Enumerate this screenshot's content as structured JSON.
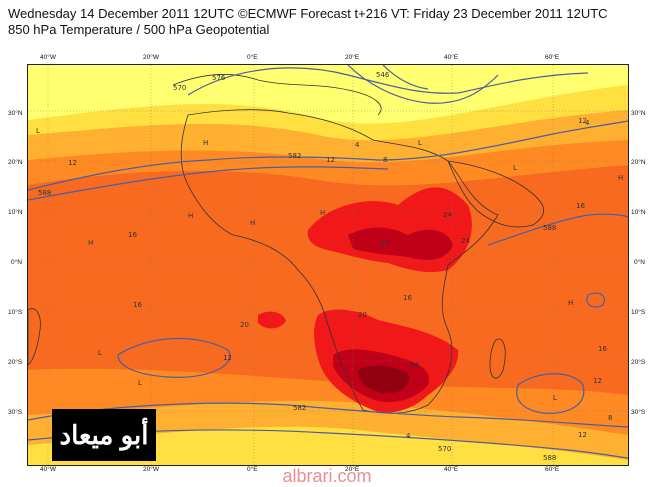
{
  "header": {
    "line1": "Wednesday 14 December 2011 12UTC ©ECMWF Forecast t+216 VT: Friday 23 December 2011 12UTC",
    "line2": "850 hPa Temperature / 500 hPa Geopotential"
  },
  "axes": {
    "top_longitudes": [
      "40°W",
      "20°W",
      "0°E",
      "20°E",
      "40°E",
      "60°E"
    ],
    "bottom_longitudes": [
      "40°W",
      "20°W",
      "0°E",
      "20°E",
      "40°E",
      "60°E"
    ],
    "left_latitudes": [
      "30°N",
      "20°N",
      "10°N",
      "0°N",
      "10°S",
      "20°S",
      "30°S"
    ],
    "right_latitudes": [
      "30°N",
      "20°N",
      "10°N",
      "0°N",
      "10°S",
      "20°S",
      "30°S"
    ]
  },
  "colors": {
    "temp_lt_4": "#ffff70",
    "temp_4_8": "#ffe040",
    "temp_8_12": "#ffb030",
    "temp_12_16": "#ff8a24",
    "temp_16_20": "#f86a20",
    "temp_20_24": "#f01818",
    "temp_24_28": "#c00018",
    "temp_gt_28": "#900010",
    "contour": "#4a5ea0",
    "coast": "#333333"
  },
  "contour_labels": [
    "576",
    "582",
    "588",
    "570",
    "546",
    "582",
    "588",
    "570",
    "588"
  ],
  "temperature_labels": [
    "12",
    "16",
    "16",
    "20",
    "20",
    "24",
    "24",
    "24",
    "24",
    "16",
    "12",
    "12",
    "8",
    "4",
    "4",
    "12",
    "16",
    "16",
    "8",
    "4",
    "12",
    "12"
  ],
  "pressure_markers": [
    "L",
    "H",
    "H",
    "L",
    "H",
    "H",
    "L",
    "H",
    "H",
    "L",
    "L",
    "H",
    "L"
  ],
  "watermark_text": "أبو ميعاد",
  "footer": {
    "site": "albrari.com"
  }
}
